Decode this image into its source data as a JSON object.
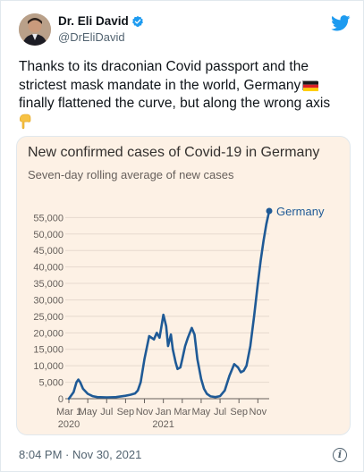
{
  "user": {
    "display_name": "Dr. Eli David",
    "handle": "@DrEliDavid"
  },
  "tweet": {
    "text_line1": "Thanks to its draconian Covid passport and the",
    "text_line2": "strictest mask mandate in the world, Germany",
    "text_line3": "finally flattened the curve, but along the wrong axis",
    "timestamp": "8:04 PM · Nov 30, 2021"
  },
  "icons": {
    "avatar": "avatar",
    "verified": "verified-badge-icon",
    "twitter": "twitter-bird-icon",
    "flag": "germany-flag-icon",
    "hand": "pointing-down-hand-icon",
    "info": "info-icon"
  },
  "colors": {
    "line": "#1f5a96",
    "card_bg": "#fdf1e5",
    "twitter_blue": "#1d9bf0"
  },
  "chart_data": {
    "type": "line",
    "title": "New confirmed cases of Covid-19 in Germany",
    "subtitle": "Seven-day rolling average of new cases",
    "series": [
      {
        "name": "Germany",
        "x": [
          0,
          0.5,
          0.8,
          1.0,
          1.2,
          1.5,
          2,
          2.5,
          3,
          4,
          5,
          6,
          6.5,
          7,
          7.3,
          7.6,
          8,
          8.5,
          9,
          9.3,
          9.6,
          10,
          10.3,
          10.5,
          10.8,
          11,
          11.3,
          11.5,
          11.8,
          12,
          12.3,
          12.6,
          13,
          13.3,
          13.6,
          14,
          14.3,
          14.6,
          15,
          15.5,
          16,
          16.5,
          17,
          17.5,
          17.9,
          18.2,
          18.5,
          18.8,
          19.2,
          19.6,
          20,
          20.3,
          20.6,
          20.9,
          21.2
        ],
        "values": [
          0,
          2000,
          5000,
          5800,
          5000,
          3000,
          1500,
          800,
          500,
          400,
          500,
          900,
          1200,
          1600,
          2500,
          5000,
          12000,
          19000,
          18000,
          20000,
          18500,
          25500,
          22000,
          16000,
          19500,
          15000,
          11000,
          9000,
          9500,
          12000,
          16000,
          18500,
          21500,
          19500,
          12000,
          6000,
          3000,
          1500,
          700,
          500,
          800,
          2500,
          7000,
          10500,
          9500,
          8000,
          8500,
          10000,
          16000,
          25000,
          35000,
          42000,
          48000,
          53000,
          57000
        ]
      }
    ],
    "x_tick_labels": [
      "Mar 1",
      "May",
      "Jul",
      "Sep",
      "Nov",
      "Jan",
      "Mar",
      "May",
      "Jul",
      "Sep",
      "Nov"
    ],
    "x_tick_positions": [
      0,
      2,
      4,
      6,
      8,
      10,
      12,
      14,
      16,
      18,
      20
    ],
    "x_year_labels": [
      {
        "label": "2020",
        "x": 0
      },
      {
        "label": "2021",
        "x": 10
      }
    ],
    "y_ticks": [
      0,
      5000,
      10000,
      15000,
      20000,
      25000,
      30000,
      35000,
      40000,
      45000,
      50000,
      55000
    ],
    "y_tick_labels": [
      "0",
      "5,000",
      "10,000",
      "15,000",
      "20,000",
      "25,000",
      "30,000",
      "35,000",
      "40,000",
      "45,000",
      "50,000",
      "55,000"
    ],
    "ylim": [
      0,
      57000
    ],
    "xlim": [
      0,
      21.2
    ],
    "end_label": "Germany",
    "grid": "horizontal"
  }
}
